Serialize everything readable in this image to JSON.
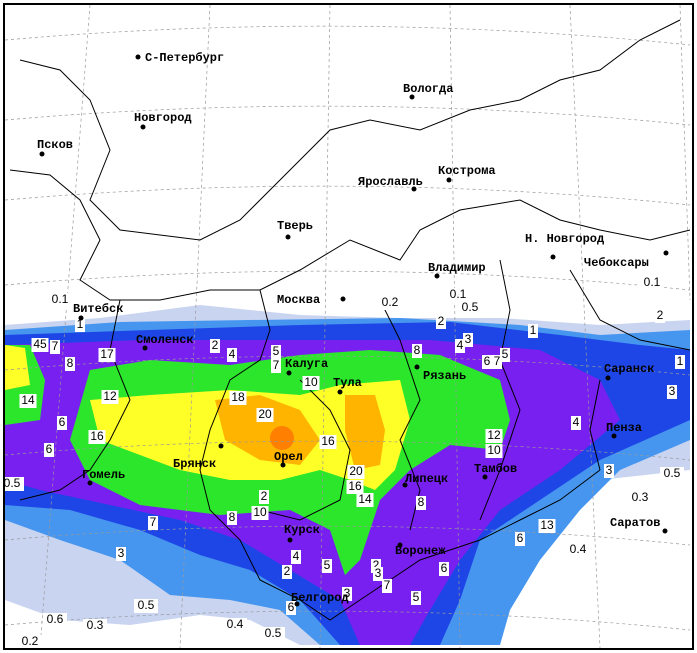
{
  "cities": [
    "С-Петербург",
    "Вологда",
    "Новгород",
    "Псков",
    "Кострома",
    "Ярославль",
    "Тверь",
    "Н. Новгород",
    "Чебоксары",
    "Владимир",
    "Москва",
    "Витебск",
    "Смоленск",
    "Калуга",
    "Рязань",
    "Саранск",
    "Тула",
    "Пенза",
    "Брянск",
    "Орел",
    "Гомель",
    "Тамбов",
    "Липецк",
    "Саратов",
    "Курск",
    "Воронеж",
    "Белгород"
  ],
  "contour_labels": [
    "0.1",
    "1",
    "0.2",
    "0.1",
    "0.5",
    "1",
    "2",
    "3",
    "4",
    "5",
    "6",
    "7",
    "8",
    "2",
    "0.1",
    "1",
    "2",
    "4",
    "5",
    "7",
    "10",
    "12",
    "17",
    "45",
    "7",
    "8",
    "14",
    "6",
    "16",
    "6",
    "18",
    "20",
    "16",
    "20",
    "16",
    "14",
    "12",
    "10",
    "4",
    "3",
    "3",
    "0.5",
    "2",
    "10",
    "8",
    "7",
    "8",
    "3",
    "4",
    "2",
    "5",
    "2",
    "3",
    "7",
    "6",
    "5",
    "3",
    "6",
    "0.5",
    "0.6",
    "0.3",
    "0.4",
    "0.5",
    "0.2",
    "6",
    "13",
    "0.4",
    "0.3",
    "0.5"
  ]
}
